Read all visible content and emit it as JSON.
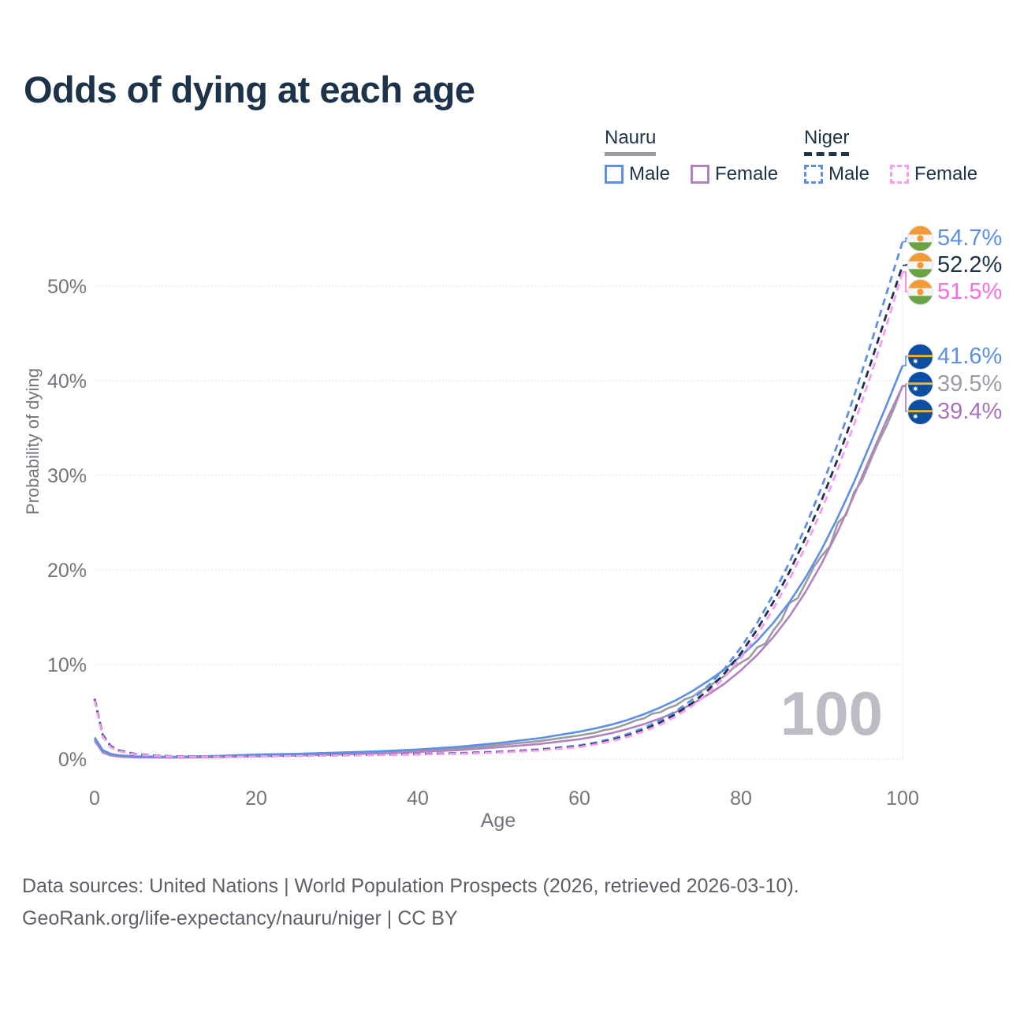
{
  "page": {
    "watermark_age": "100",
    "footer_line1": "Data sources: United Nations | World Population Prospects (2026, retrieved 2026-03-10).",
    "footer_line2": "GeoRank.org/life-expectancy/nauru/niger | CC BY"
  },
  "legend": {
    "groups": [
      {
        "label": "Nauru",
        "line_style": "solid",
        "line_color": "#9b9ba3",
        "items": [
          {
            "label": "Male",
            "color": "#5d8ee8",
            "style": "solid"
          },
          {
            "label": "Female",
            "color": "#b183c0",
            "style": "solid"
          }
        ]
      },
      {
        "label": "Niger",
        "line_style": "dashed",
        "line_color": "#1d3349",
        "items": [
          {
            "label": "Male",
            "color": "#5d8ee8",
            "style": "dashed"
          },
          {
            "label": "Female",
            "color": "#f99bee",
            "style": "dashed"
          }
        ]
      }
    ]
  },
  "chart_data": {
    "type": "line",
    "title": "Odds of dying at each age",
    "xlabel": "Age",
    "ylabel": "Probability of dying",
    "xlim": [
      0,
      100
    ],
    "ylim": [
      0,
      56
    ],
    "xticks": [
      0,
      20,
      40,
      60,
      80,
      100
    ],
    "yticks": [
      0,
      10,
      20,
      30,
      40,
      50
    ],
    "ytick_suffix": "%",
    "grid": true,
    "legend_position": "top-right",
    "series": [
      {
        "id": "nauru-total",
        "name": "Nauru (both sexes)",
        "color": "#9b9ba3",
        "dash": false,
        "values": [
          [
            0,
            2.12
          ],
          [
            1,
            0.82
          ],
          [
            2,
            0.46
          ],
          [
            3,
            0.33
          ],
          [
            5,
            0.23
          ],
          [
            10,
            0.2
          ],
          [
            15,
            0.27
          ],
          [
            20,
            0.4
          ],
          [
            25,
            0.48
          ],
          [
            30,
            0.58
          ],
          [
            35,
            0.72
          ],
          [
            40,
            0.9
          ],
          [
            45,
            1.12
          ],
          [
            50,
            1.48
          ],
          [
            55,
            1.9
          ],
          [
            60,
            2.5
          ],
          [
            62,
            2.8
          ],
          [
            63,
            3.05
          ],
          [
            64,
            3.2
          ],
          [
            65,
            3.45
          ],
          [
            66,
            3.75
          ],
          [
            67,
            4.1
          ],
          [
            68,
            4.3
          ],
          [
            69,
            4.8
          ],
          [
            70,
            4.95
          ],
          [
            71,
            5.4
          ],
          [
            72,
            5.7
          ],
          [
            73,
            6.3
          ],
          [
            74,
            6.6
          ],
          [
            75,
            7.2
          ],
          [
            76,
            7.6
          ],
          [
            77,
            8.3
          ],
          [
            78,
            8.8
          ],
          [
            79,
            9.6
          ],
          [
            80,
            10.2
          ],
          [
            81,
            10.7
          ],
          [
            82,
            11.8
          ],
          [
            83,
            12.2
          ],
          [
            84,
            13.6
          ],
          [
            85,
            14.7
          ],
          [
            86,
            16.5
          ],
          [
            87,
            17.0
          ],
          [
            88,
            18.6
          ],
          [
            89,
            20.3
          ],
          [
            90,
            21.5
          ],
          [
            91,
            22.5
          ],
          [
            92,
            25.0
          ],
          [
            93,
            25.8
          ],
          [
            94,
            28.2
          ],
          [
            95,
            29.5
          ],
          [
            96,
            31.5
          ],
          [
            97,
            33.5
          ],
          [
            98,
            35.2
          ],
          [
            99,
            37.2
          ],
          [
            100,
            39.5
          ]
        ]
      },
      {
        "id": "nauru-female",
        "name": "Nauru Female",
        "color": "#b183c0",
        "dash": false,
        "values": [
          [
            0,
            1.95
          ],
          [
            1,
            0.7
          ],
          [
            2,
            0.38
          ],
          [
            3,
            0.26
          ],
          [
            5,
            0.18
          ],
          [
            10,
            0.16
          ],
          [
            15,
            0.2
          ],
          [
            20,
            0.3
          ],
          [
            25,
            0.38
          ],
          [
            30,
            0.48
          ],
          [
            35,
            0.6
          ],
          [
            40,
            0.75
          ],
          [
            45,
            0.95
          ],
          [
            50,
            1.25
          ],
          [
            55,
            1.6
          ],
          [
            60,
            2.1
          ],
          [
            62,
            2.4
          ],
          [
            64,
            2.75
          ],
          [
            66,
            3.2
          ],
          [
            68,
            3.7
          ],
          [
            70,
            4.3
          ],
          [
            72,
            5.0
          ],
          [
            74,
            5.85
          ],
          [
            76,
            6.85
          ],
          [
            78,
            8.0
          ],
          [
            80,
            9.4
          ],
          [
            82,
            11.0
          ],
          [
            84,
            12.9
          ],
          [
            86,
            15.1
          ],
          [
            88,
            17.7
          ],
          [
            90,
            20.7
          ],
          [
            92,
            24.1
          ],
          [
            94,
            27.9
          ],
          [
            96,
            31.9
          ],
          [
            98,
            35.8
          ],
          [
            100,
            39.4
          ]
        ]
      },
      {
        "id": "nauru-male",
        "name": "Nauru Male",
        "color": "#5d8ee8",
        "dash": false,
        "values": [
          [
            0,
            2.3
          ],
          [
            1,
            0.95
          ],
          [
            2,
            0.55
          ],
          [
            3,
            0.4
          ],
          [
            5,
            0.28
          ],
          [
            10,
            0.25
          ],
          [
            15,
            0.33
          ],
          [
            20,
            0.48
          ],
          [
            25,
            0.56
          ],
          [
            30,
            0.68
          ],
          [
            35,
            0.82
          ],
          [
            40,
            1.02
          ],
          [
            45,
            1.3
          ],
          [
            50,
            1.7
          ],
          [
            55,
            2.2
          ],
          [
            60,
            2.9
          ],
          [
            62,
            3.25
          ],
          [
            64,
            3.65
          ],
          [
            66,
            4.15
          ],
          [
            68,
            4.75
          ],
          [
            70,
            5.45
          ],
          [
            72,
            6.25
          ],
          [
            74,
            7.2
          ],
          [
            76,
            8.3
          ],
          [
            78,
            9.5
          ],
          [
            80,
            10.9
          ],
          [
            82,
            12.5
          ],
          [
            84,
            14.4
          ],
          [
            86,
            16.6
          ],
          [
            88,
            19.2
          ],
          [
            90,
            22.2
          ],
          [
            92,
            25.6
          ],
          [
            94,
            29.3
          ],
          [
            96,
            33.3
          ],
          [
            98,
            37.4
          ],
          [
            100,
            41.6
          ]
        ]
      },
      {
        "id": "niger-male",
        "name": "Niger Male",
        "color": "#5d8ee8",
        "dash": true,
        "values": [
          [
            0,
            6.4
          ],
          [
            1,
            2.6
          ],
          [
            2,
            1.4
          ],
          [
            3,
            0.95
          ],
          [
            5,
            0.55
          ],
          [
            8,
            0.36
          ],
          [
            10,
            0.3
          ],
          [
            15,
            0.28
          ],
          [
            20,
            0.32
          ],
          [
            25,
            0.36
          ],
          [
            30,
            0.42
          ],
          [
            35,
            0.47
          ],
          [
            40,
            0.55
          ],
          [
            45,
            0.63
          ],
          [
            50,
            0.78
          ],
          [
            55,
            1.02
          ],
          [
            60,
            1.45
          ],
          [
            62,
            1.75
          ],
          [
            64,
            2.15
          ],
          [
            66,
            2.65
          ],
          [
            68,
            3.3
          ],
          [
            70,
            4.1
          ],
          [
            72,
            5.1
          ],
          [
            74,
            6.3
          ],
          [
            76,
            7.8
          ],
          [
            78,
            9.6
          ],
          [
            80,
            11.8
          ],
          [
            82,
            14.4
          ],
          [
            84,
            17.4
          ],
          [
            86,
            20.8
          ],
          [
            88,
            24.6
          ],
          [
            90,
            28.8
          ],
          [
            92,
            33.4
          ],
          [
            94,
            38.4
          ],
          [
            96,
            43.7
          ],
          [
            98,
            49.2
          ],
          [
            100,
            54.7
          ]
        ]
      },
      {
        "id": "niger-total",
        "name": "Niger (both sexes)",
        "color": "#1d3349",
        "dash": true,
        "values": [
          [
            0,
            6.3
          ],
          [
            1,
            2.5
          ],
          [
            2,
            1.32
          ],
          [
            3,
            0.9
          ],
          [
            5,
            0.52
          ],
          [
            8,
            0.34
          ],
          [
            10,
            0.28
          ],
          [
            15,
            0.26
          ],
          [
            20,
            0.3
          ],
          [
            25,
            0.34
          ],
          [
            30,
            0.4
          ],
          [
            35,
            0.45
          ],
          [
            40,
            0.52
          ],
          [
            45,
            0.6
          ],
          [
            50,
            0.74
          ],
          [
            55,
            0.97
          ],
          [
            60,
            1.35
          ],
          [
            62,
            1.63
          ],
          [
            64,
            2.0
          ],
          [
            66,
            2.48
          ],
          [
            68,
            3.1
          ],
          [
            70,
            3.85
          ],
          [
            72,
            4.8
          ],
          [
            74,
            5.95
          ],
          [
            76,
            7.35
          ],
          [
            78,
            9.1
          ],
          [
            80,
            11.2
          ],
          [
            82,
            13.7
          ],
          [
            84,
            16.6
          ],
          [
            86,
            19.8
          ],
          [
            88,
            23.4
          ],
          [
            90,
            27.4
          ],
          [
            92,
            31.8
          ],
          [
            94,
            36.6
          ],
          [
            96,
            41.7
          ],
          [
            98,
            47.0
          ],
          [
            100,
            52.2
          ]
        ]
      },
      {
        "id": "niger-female",
        "name": "Niger Female",
        "color": "#f99bee",
        "dash": true,
        "values": [
          [
            0,
            6.2
          ],
          [
            1,
            2.4
          ],
          [
            2,
            1.25
          ],
          [
            3,
            0.85
          ],
          [
            5,
            0.5
          ],
          [
            8,
            0.32
          ],
          [
            10,
            0.27
          ],
          [
            15,
            0.25
          ],
          [
            20,
            0.29
          ],
          [
            25,
            0.33
          ],
          [
            30,
            0.38
          ],
          [
            35,
            0.43
          ],
          [
            40,
            0.5
          ],
          [
            45,
            0.57
          ],
          [
            50,
            0.7
          ],
          [
            55,
            0.92
          ],
          [
            60,
            1.28
          ],
          [
            62,
            1.55
          ],
          [
            64,
            1.9
          ],
          [
            66,
            2.36
          ],
          [
            68,
            2.95
          ],
          [
            70,
            3.65
          ],
          [
            72,
            4.55
          ],
          [
            74,
            5.65
          ],
          [
            76,
            7.0
          ],
          [
            78,
            8.7
          ],
          [
            80,
            10.7
          ],
          [
            82,
            13.1
          ],
          [
            84,
            15.9
          ],
          [
            86,
            19.0
          ],
          [
            88,
            22.5
          ],
          [
            90,
            26.4
          ],
          [
            92,
            30.7
          ],
          [
            94,
            35.4
          ],
          [
            96,
            40.4
          ],
          [
            98,
            45.8
          ],
          [
            100,
            51.5
          ]
        ]
      }
    ],
    "end_labels": [
      {
        "series": "niger-male",
        "flag": "niger",
        "value": "54.7%",
        "color": "#5d8ee8"
      },
      {
        "series": "niger-total",
        "flag": "niger",
        "value": "52.2%",
        "color": "#1d3349"
      },
      {
        "series": "niger-female",
        "flag": "niger",
        "value": "51.5%",
        "color": "#f96ddf"
      },
      {
        "series": "nauru-male",
        "flag": "nauru",
        "value": "41.6%",
        "color": "#5d8ee8"
      },
      {
        "series": "nauru-total",
        "flag": "nauru",
        "value": "39.5%",
        "color": "#9b9ba3"
      },
      {
        "series": "nauru-female",
        "flag": "nauru",
        "value": "39.4%",
        "color": "#a873b8"
      }
    ]
  }
}
